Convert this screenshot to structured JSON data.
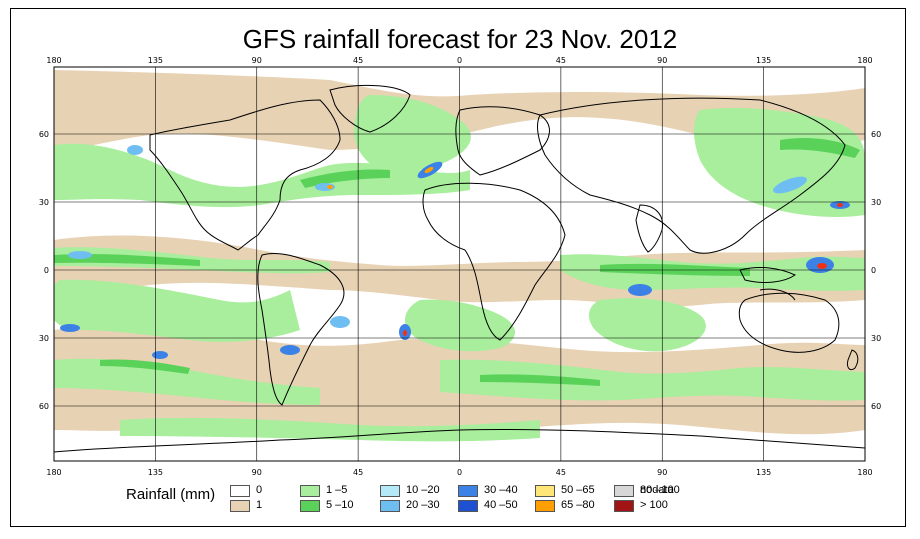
{
  "title": "GFS rainfall forecast for 23 Nov. 2012",
  "lon_ticks": [
    "180",
    "135",
    "90",
    "45",
    "0",
    "45",
    "90",
    "135",
    "180"
  ],
  "lat_ticks": [
    "60",
    "30",
    "0",
    "30",
    "60"
  ],
  "legend": {
    "title": "Rainfall (mm)",
    "items": [
      {
        "label": "0",
        "color": "#ffffff"
      },
      {
        "label": "1",
        "color": "#e8d2b4"
      },
      {
        "label": "1 –5",
        "color": "#a8ee9c"
      },
      {
        "label": "5 –10",
        "color": "#5ad25a"
      },
      {
        "label": "10 –20",
        "color": "#b4eaf8"
      },
      {
        "label": "20 –30",
        "color": "#6fbef2"
      },
      {
        "label": "30 –40",
        "color": "#3c82e6"
      },
      {
        "label": "40 –50",
        "color": "#1e50d2"
      },
      {
        "label": "50 –65",
        "color": "#ffe678"
      },
      {
        "label": "65 –80",
        "color": "#ffa000"
      },
      {
        "label": "80 –100",
        "color": "#f03214"
      },
      {
        "label": "> 100",
        "color": "#a01414"
      },
      {
        "label": "nodata",
        "color": "#d7d7d7"
      }
    ]
  }
}
